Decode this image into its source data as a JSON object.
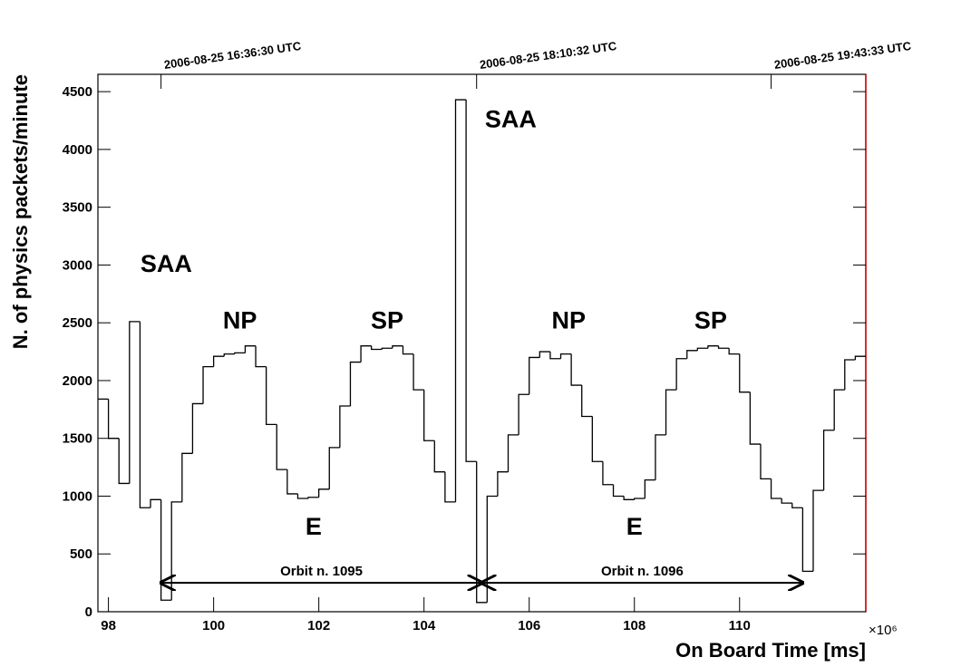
{
  "chart_data": {
    "type": "histogram",
    "x_label": "On Board Time [ms]",
    "y_label": "N. of physics packets/minute",
    "x_multiplier": "×10⁶",
    "color": "#000000",
    "xlim": [
      97.8,
      112.4
    ],
    "ylim": [
      0,
      4650
    ],
    "xticks": [
      98,
      100,
      102,
      104,
      106,
      108,
      110
    ],
    "yticks": [
      0,
      500,
      1000,
      1500,
      2000,
      2500,
      3000,
      3500,
      4000,
      4500
    ],
    "top_ticks": [
      {
        "value": 99.0,
        "label": "2006-08-25 16:36:30 UTC"
      },
      {
        "value": 105.0,
        "label": "2006-08-25 18:10:32 UTC"
      },
      {
        "value": 110.6,
        "label": "2006-08-25 19:43:33 UTC"
      }
    ],
    "bins": [
      97.8,
      98.0,
      98.2,
      98.4,
      98.6,
      98.8,
      99.0,
      99.2,
      99.4,
      99.6,
      99.8,
      100.0,
      100.2,
      100.4,
      100.6,
      100.8,
      101.0,
      101.2,
      101.4,
      101.6,
      101.8,
      102.0,
      102.2,
      102.4,
      102.6,
      102.8,
      103.0,
      103.2,
      103.4,
      103.6,
      103.8,
      104.0,
      104.2,
      104.4,
      104.6,
      104.8,
      105.0,
      105.2,
      105.4,
      105.6,
      105.8,
      106.0,
      106.2,
      106.4,
      106.6,
      106.8,
      107.0,
      107.2,
      107.4,
      107.6,
      107.8,
      108.0,
      108.2,
      108.4,
      108.6,
      108.8,
      109.0,
      109.2,
      109.4,
      109.6,
      109.8,
      110.0,
      110.2,
      110.4,
      110.6,
      110.8,
      111.0,
      111.2,
      111.4,
      111.6,
      111.8,
      112.0,
      112.2,
      112.4
    ],
    "values": [
      1840,
      1500,
      1110,
      2510,
      900,
      970,
      100,
      950,
      1370,
      1800,
      2120,
      2210,
      2230,
      2240,
      2300,
      2120,
      1620,
      1230,
      1020,
      980,
      990,
      1060,
      1420,
      1780,
      2160,
      2300,
      2270,
      2280,
      2300,
      2230,
      1920,
      1480,
      1210,
      950,
      4430,
      1300,
      80,
      1000,
      1210,
      1530,
      1880,
      2200,
      2250,
      2190,
      2230,
      1960,
      1690,
      1300,
      1100,
      1000,
      970,
      980,
      1140,
      1530,
      1920,
      2190,
      2260,
      2280,
      2300,
      2280,
      2230,
      1900,
      1450,
      1150,
      980,
      940,
      900,
      350,
      1050,
      1570,
      1920,
      2180,
      2210
    ],
    "annotations": [
      {
        "text": "SAA",
        "x": 99.1,
        "y": 3020
      },
      {
        "text": "NP",
        "x": 100.5,
        "y": 2530
      },
      {
        "text": "SP",
        "x": 103.3,
        "y": 2530
      },
      {
        "text": "E",
        "x": 101.9,
        "y": 745
      },
      {
        "text": "SAA",
        "x": 105.65,
        "y": 4270
      },
      {
        "text": "NP",
        "x": 106.75,
        "y": 2530
      },
      {
        "text": "SP",
        "x": 109.45,
        "y": 2530
      },
      {
        "text": "E",
        "x": 108.0,
        "y": 745
      }
    ],
    "orbits": [
      {
        "label": "Orbit n. 1095",
        "start": 99.0,
        "end": 105.1,
        "y": 250
      },
      {
        "label": "Orbit n. 1096",
        "start": 105.1,
        "end": 111.2,
        "y": 250
      }
    ]
  }
}
